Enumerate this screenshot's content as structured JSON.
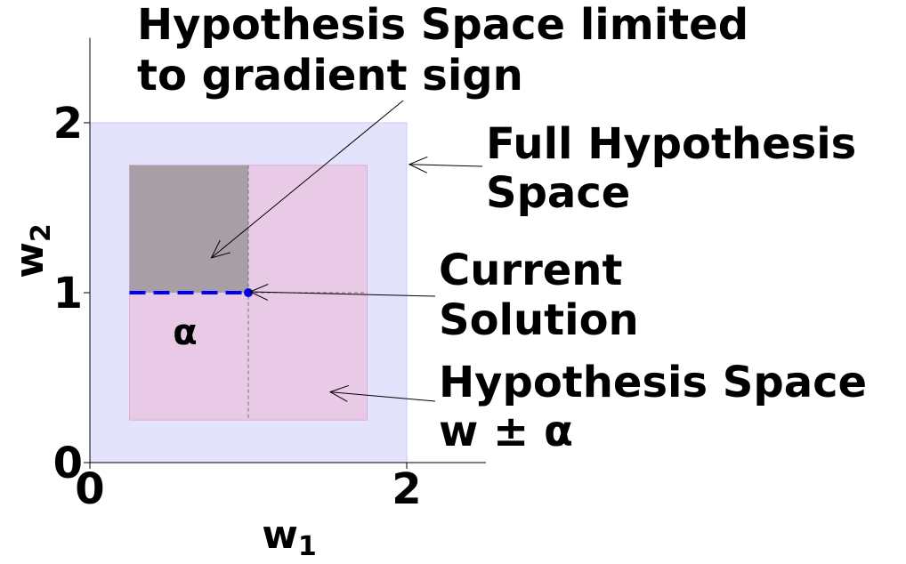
{
  "axes": {
    "xlabel_base": "w",
    "xlabel_sub": "1",
    "ylabel_base": "w",
    "ylabel_sub": "2",
    "xticks": [
      {
        "value": 0,
        "label": "0"
      },
      {
        "value": 2,
        "label": "2"
      }
    ],
    "yticks": [
      {
        "value": 0,
        "label": "0"
      },
      {
        "value": 1,
        "label": "1"
      },
      {
        "value": 2,
        "label": "2"
      }
    ],
    "xlim": [
      0,
      2.5
    ],
    "ylim": [
      0,
      2.5
    ]
  },
  "regions": {
    "full": {
      "x": [
        0,
        2
      ],
      "y": [
        0,
        2
      ],
      "color": "#e3e3fb"
    },
    "alpha_box": {
      "x": [
        0.25,
        1.75
      ],
      "y": [
        0.25,
        1.75
      ],
      "color": "#e8c9e6"
    },
    "gradient_sign": {
      "x": [
        0.25,
        1.0
      ],
      "y": [
        1.0,
        1.75
      ],
      "color": "#a89ea6"
    }
  },
  "current_solution": {
    "w1": 1.0,
    "w2": 1.0,
    "color": "#0000ee"
  },
  "alpha_segment": {
    "x": [
      0.25,
      1.0
    ],
    "y": 1.0,
    "color": "#0000ee"
  },
  "alpha_symbol": "α",
  "annotations": {
    "gradient_sign": {
      "lines": [
        "Hypothesis Space limited",
        "to gradient sign"
      ],
      "arrow_target": [
        0.75,
        1.2
      ]
    },
    "full_space": {
      "lines": [
        "Full Hypothesis",
        "Space"
      ],
      "arrow_target": [
        2.0,
        1.75
      ]
    },
    "current": {
      "lines": [
        "Current",
        "Solution"
      ],
      "arrow_target": [
        1.0,
        1.0
      ]
    },
    "alpha_space": {
      "lines": [
        "Hypothesis Space",
        "w ± α"
      ],
      "arrow_target": [
        1.5,
        0.4
      ]
    }
  }
}
